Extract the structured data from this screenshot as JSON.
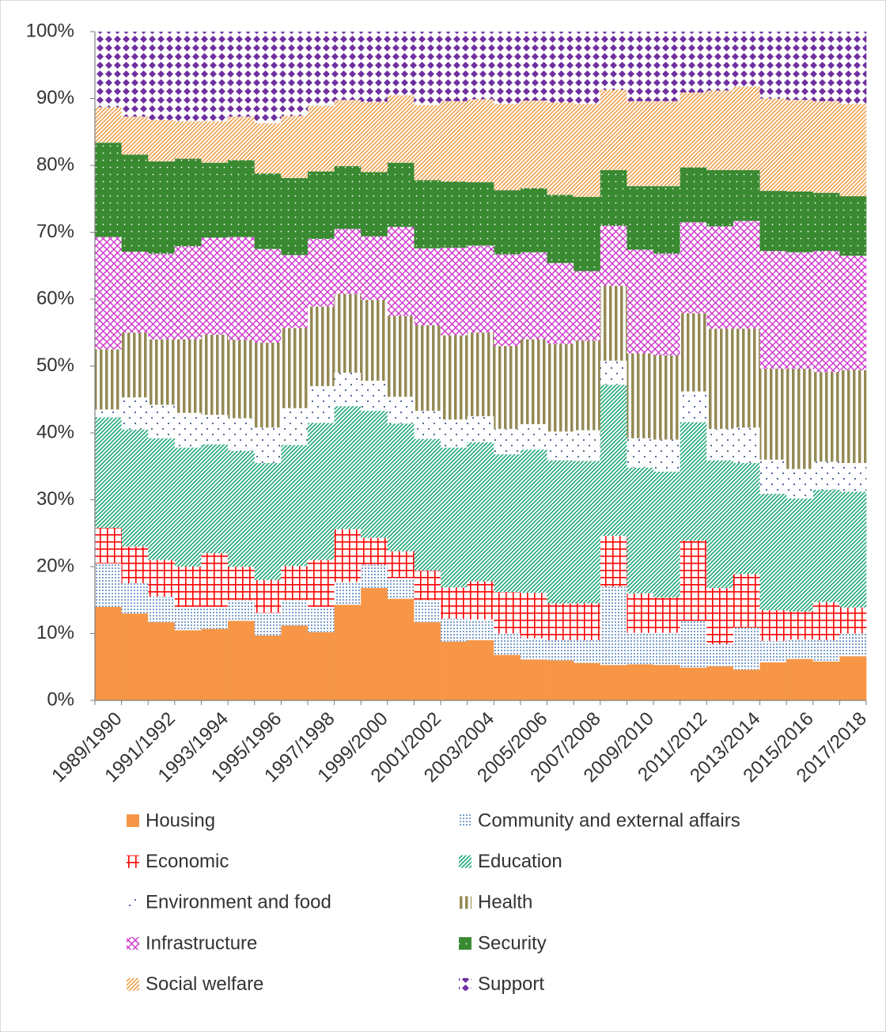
{
  "chart_data": {
    "type": "stacked-step-area",
    "categories": [
      "1989/1990",
      null,
      "1991/1992",
      null,
      "1993/1994",
      null,
      "1995/1996",
      null,
      "1997/1998",
      null,
      "1999/2000",
      null,
      "2001/2002",
      null,
      "2003/2004",
      null,
      "2005/2006",
      null,
      "2007/2008",
      null,
      "2009/2010",
      null,
      "2011/2012",
      null,
      "2013/2014",
      null,
      "2015/2016",
      null,
      "2017/2018"
    ],
    "ylim": [
      0,
      100
    ],
    "yticks": [
      {
        "value": 0,
        "label": "0%"
      },
      {
        "value": 10,
        "label": "10%"
      },
      {
        "value": 20,
        "label": "20%"
      },
      {
        "value": 30,
        "label": "30%"
      },
      {
        "value": 40,
        "label": "40%"
      },
      {
        "value": 50,
        "label": "50%"
      },
      {
        "value": 60,
        "label": "60%"
      },
      {
        "value": 70,
        "label": "70%"
      },
      {
        "value": 80,
        "label": "80%"
      },
      {
        "value": 90,
        "label": "90%"
      },
      {
        "value": 100,
        "label": "100%"
      }
    ],
    "grid": false,
    "series": [
      {
        "name": "Housing",
        "color": "#f79646",
        "pattern": "solid",
        "values": [
          14,
          13,
          11.7,
          10.5,
          10.7,
          11.9,
          9.7,
          11.2,
          10.2,
          14.3,
          16.8,
          15.2,
          11.7,
          8.8,
          9,
          6.8,
          6.1,
          6,
          5.6,
          5.3,
          5.4,
          5.3,
          4.9,
          5.1,
          4.6,
          5.7,
          6.2,
          5.8,
          6.6
        ]
      },
      {
        "name": "Community and external affairs",
        "color": "#4f81bd",
        "pattern": "dots",
        "values": [
          6.5,
          4.5,
          3.8,
          3.5,
          3.3,
          3.1,
          3.4,
          3.8,
          3.8,
          3.4,
          3.5,
          3.1,
          3.3,
          3.4,
          3.1,
          3.2,
          3.2,
          3,
          3.4,
          11.7,
          4.7,
          4.8,
          7,
          3.3,
          6.3,
          3.2,
          2.9,
          3.2,
          3.4
        ]
      },
      {
        "name": "Economic",
        "color": "#ff0000",
        "pattern": "grid",
        "values": [
          5.3,
          5.5,
          5.5,
          6,
          8,
          5,
          4.9,
          5.1,
          7,
          7.9,
          4,
          4,
          4.4,
          4.7,
          5.7,
          6.2,
          6.8,
          5.5,
          5.5,
          7.6,
          5.9,
          5.3,
          12,
          8.4,
          8,
          4.6,
          4.2,
          5.7,
          3.9
        ]
      },
      {
        "name": "Education",
        "color": "#1fa877",
        "pattern": "diagonal",
        "values": [
          16.5,
          17.5,
          18.2,
          17.8,
          16.3,
          17.3,
          17.5,
          18.1,
          20.5,
          18.4,
          19,
          19.1,
          19.7,
          20.9,
          20.8,
          20.6,
          21.4,
          21.4,
          21.3,
          22.6,
          18.8,
          18.8,
          17.7,
          19.1,
          16.6,
          17.4,
          16.9,
          16.8,
          17.3
        ]
      },
      {
        "name": "Environment and food",
        "color": "#1f3a7a",
        "pattern": "sparse-dots",
        "values": [
          1.2,
          4.8,
          5,
          5.2,
          4.4,
          4.9,
          5.3,
          5.5,
          5.5,
          5,
          4.5,
          4,
          4.2,
          4.2,
          3.9,
          3.8,
          3.8,
          4.3,
          4.6,
          3.6,
          4.4,
          4.8,
          4.6,
          4.7,
          5.3,
          5.1,
          4.4,
          4.2,
          4.3
        ]
      },
      {
        "name": "Health",
        "color": "#948a54",
        "pattern": "vertical",
        "values": [
          9,
          9.7,
          9.8,
          11,
          12,
          11.7,
          12.7,
          12,
          11.9,
          11.8,
          12.1,
          12.1,
          12.8,
          12.6,
          12.5,
          12.4,
          12.7,
          13.1,
          13.4,
          11.2,
          12.7,
          12.6,
          11.7,
          15,
          14.8,
          13.6,
          15,
          13.4,
          13.9
        ]
      },
      {
        "name": "Infrastructure",
        "color": "#cc33cc",
        "pattern": "crosshatch",
        "values": [
          16.8,
          12.1,
          12.8,
          13.9,
          14.5,
          15.4,
          14,
          10.9,
          10.1,
          9.7,
          9.5,
          13.3,
          11.5,
          13.1,
          13,
          13.7,
          13,
          12.1,
          10.4,
          9,
          15.5,
          15.2,
          13.6,
          15.3,
          16.1,
          17.6,
          17.4,
          18.1,
          17.1
        ]
      },
      {
        "name": "Security",
        "color": "#3a8a32",
        "pattern": "dotted-solid",
        "values": [
          14.1,
          14.5,
          13.8,
          13.1,
          11.2,
          11.5,
          11.3,
          11.5,
          10.1,
          9.4,
          9.6,
          9.6,
          10.2,
          9.9,
          9.5,
          9.6,
          9.6,
          10.2,
          11.1,
          8.3,
          9.5,
          10.1,
          8.2,
          8.4,
          7.6,
          9,
          9.1,
          8.7,
          8.9
        ]
      },
      {
        "name": "Social welfare",
        "color": "#f0a04b",
        "pattern": "diagonal",
        "values": [
          5.3,
          5.7,
          6.2,
          5.6,
          6.2,
          6.5,
          7.5,
          9.3,
          9.8,
          9.9,
          10.5,
          10.1,
          11.2,
          12,
          12.4,
          12.9,
          13.1,
          13.8,
          13.9,
          12,
          12.7,
          12.7,
          11.2,
          11.9,
          12.5,
          13.8,
          13.7,
          13.7,
          13.8
        ]
      },
      {
        "name": "Support",
        "color": "#7030a0",
        "pattern": "diamonds",
        "values": [
          11.3,
          12.7,
          13.2,
          13.4,
          13.4,
          12.7,
          13.7,
          12.6,
          11.1,
          10.2,
          10.5,
          9.5,
          11,
          10.4,
          10.1,
          10.8,
          10.3,
          10.6,
          10.8,
          8.7,
          10.4,
          10.4,
          9.1,
          8.8,
          8.2,
          10,
          10.2,
          10.4,
          10.8
        ]
      }
    ]
  }
}
